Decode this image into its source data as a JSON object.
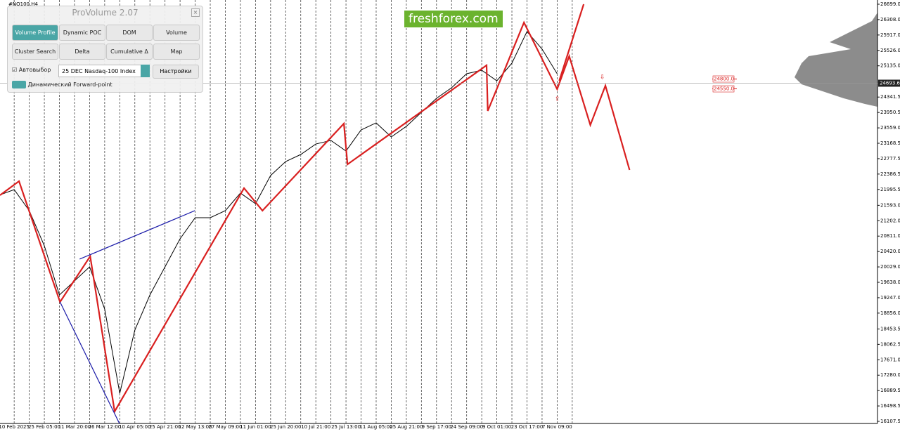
{
  "symbol": "#NQ100,H4",
  "watermark": "freshforex.com",
  "panel": {
    "title": "ProVolume 2.07",
    "buttons": [
      "Volume Profile",
      "Dynamic POC",
      "DOM",
      "Volume",
      "Cluster Search",
      "Delta",
      "Cumulative Δ",
      "Map"
    ],
    "auto_select": "Автовыбор",
    "instrument": "25 DEC Nasdaq-100 Index",
    "settings": "Настройки",
    "forward_point": "Динамический Forward-point"
  },
  "chart_data": {
    "type": "line",
    "categories": [
      "10 Feb 2025",
      "25 Feb 05:00",
      "11 Mar 20:00",
      "26 Mar 12:00",
      "10 Apr 05:00",
      "25 Apr 21:00",
      "12 May 13:00",
      "27 May 09:00",
      "11 Jun 01:00",
      "25 Jun 20:00",
      "10 Jul 21:00",
      "25 Jul 13:00",
      "11 Aug 05:00",
      "25 Aug 21:00",
      "9 Sep 17:00",
      "24 Sep 09:00",
      "9 Oct 01:00",
      "23 Oct 17:00",
      "7 Nov 09:00"
    ],
    "xlim": [
      -0.47,
      28.62
    ],
    "ylim": [
      16107.5,
      26699
    ],
    "yticks": [
      {
        "value": 26699,
        "label": "26699.0"
      },
      {
        "value": 26308,
        "label": "26308.0"
      },
      {
        "value": 25917,
        "label": "25917.0"
      },
      {
        "value": 25526,
        "label": "25526.0"
      },
      {
        "value": 25135,
        "label": "25135.0"
      },
      {
        "value": 24341.5,
        "label": "24341.5"
      },
      {
        "value": 23950.5,
        "label": "23950.5"
      },
      {
        "value": 23559,
        "label": "23559.0"
      },
      {
        "value": 23168.5,
        "label": "23168.5"
      },
      {
        "value": 22777.5,
        "label": "22777.5"
      },
      {
        "value": 22386.5,
        "label": "22386.5"
      },
      {
        "value": 21995.5,
        "label": "21995.5"
      },
      {
        "value": 21593,
        "label": "21593.0"
      },
      {
        "value": 21202,
        "label": "21202.0"
      },
      {
        "value": 20811,
        "label": "20811.0"
      },
      {
        "value": 20420,
        "label": "20420.0"
      },
      {
        "value": 20029,
        "label": "20029.0"
      },
      {
        "value": 19638,
        "label": "19638.0"
      },
      {
        "value": 19247,
        "label": "19247.0"
      },
      {
        "value": 18856,
        "label": "18856.0"
      },
      {
        "value": 18453.5,
        "label": "18453.5"
      },
      {
        "value": 18062.5,
        "label": "18062.5"
      },
      {
        "value": 17671,
        "label": "17671.0"
      },
      {
        "value": 17280,
        "label": "17280.0"
      },
      {
        "value": 16889.5,
        "label": "16889.5"
      },
      {
        "value": 16498.5,
        "label": "16498.5"
      },
      {
        "value": 16107.5,
        "label": "16107.5"
      }
    ],
    "current_price": 24693.6,
    "levels": [
      {
        "value": 24800,
        "label": "24800.0"
      },
      {
        "value": 24550,
        "label": "24550.0"
      }
    ],
    "series": [
      {
        "color": "#000000",
        "x": [
          -0.5,
          0,
          0.5,
          1,
          1.5,
          2,
          2.5,
          3,
          3.5,
          4,
          4.5,
          5,
          5.5,
          6,
          6.5,
          7,
          7.5,
          8,
          8.5,
          9,
          9.5,
          10,
          10.5,
          11,
          11.5,
          12,
          12.5,
          13,
          13.5,
          14,
          14.5,
          15,
          15.5,
          16,
          16.5,
          17,
          17.5,
          18
        ],
        "values": [
          21849,
          21992,
          21457,
          20565,
          19317,
          19673,
          20030,
          18960,
          16820,
          18425,
          19317,
          20030,
          20744,
          21279,
          21279,
          21457,
          21903,
          21635,
          22349,
          22705,
          22883,
          23150,
          23240,
          22972,
          23507,
          23686,
          23329,
          23597,
          23954,
          24310,
          24577,
          24934,
          25023,
          24755,
          25201,
          26006,
          25560,
          24934
        ]
      },
      {
        "color": "#d92020",
        "x": [
          -0.47,
          0.16,
          1.52,
          2.52,
          3.33,
          7.62,
          8.23,
          10.93,
          11.05,
          15.66,
          15.7,
          16.9,
          18,
          18.4,
          19.1,
          19.6,
          20.4
        ],
        "values": [
          21849,
          22206,
          19139,
          20298,
          16358,
          22028,
          21457,
          23668,
          22634,
          25148,
          23989,
          26235,
          24542,
          25380,
          23632,
          24631,
          22491
        ]
      },
      {
        "color": "#d92020",
        "x": [
          18.07,
          18.88
        ],
        "values": [
          24756,
          26699
        ]
      },
      {
        "color": "#1a1aa8",
        "x": [
          2.17,
          5.99
        ],
        "values": [
          20227,
          21457
        ]
      },
      {
        "color": "#1a1aa8",
        "x": [
          1.52,
          3.5
        ],
        "values": [
          19139,
          16036
        ]
      }
    ]
  }
}
